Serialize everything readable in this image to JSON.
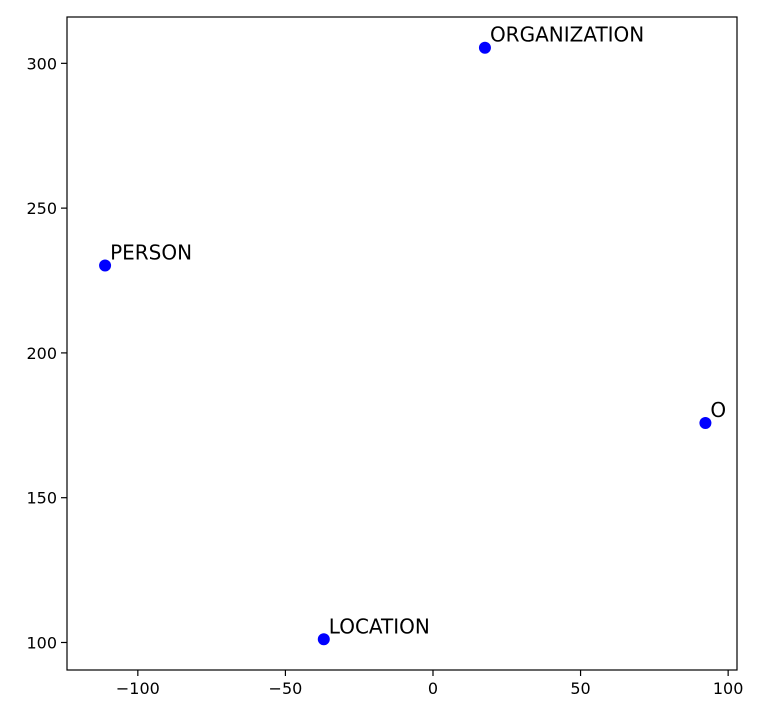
{
  "chart_data": {
    "type": "scatter",
    "title": "",
    "xlabel": "",
    "ylabel": "",
    "xlim": [
      -124,
      103
    ],
    "ylim": [
      90.5,
      316
    ],
    "xticks": [
      -100,
      -50,
      0,
      50,
      100
    ],
    "yticks": [
      100,
      150,
      200,
      250,
      300
    ],
    "xtick_labels": [
      "−100",
      "−50",
      "0",
      "50",
      "100"
    ],
    "ytick_labels": [
      "100",
      "150",
      "200",
      "250",
      "300"
    ],
    "grid": false,
    "marker_color": "#0000ff",
    "points": [
      {
        "label": "ORGANIZATION",
        "x": 17.6,
        "y": 305.4
      },
      {
        "label": "PERSON",
        "x": -111.1,
        "y": 230.2
      },
      {
        "label": "O",
        "x": 92.3,
        "y": 175.8
      },
      {
        "label": "LOCATION",
        "x": -37.0,
        "y": 101.1
      }
    ]
  }
}
